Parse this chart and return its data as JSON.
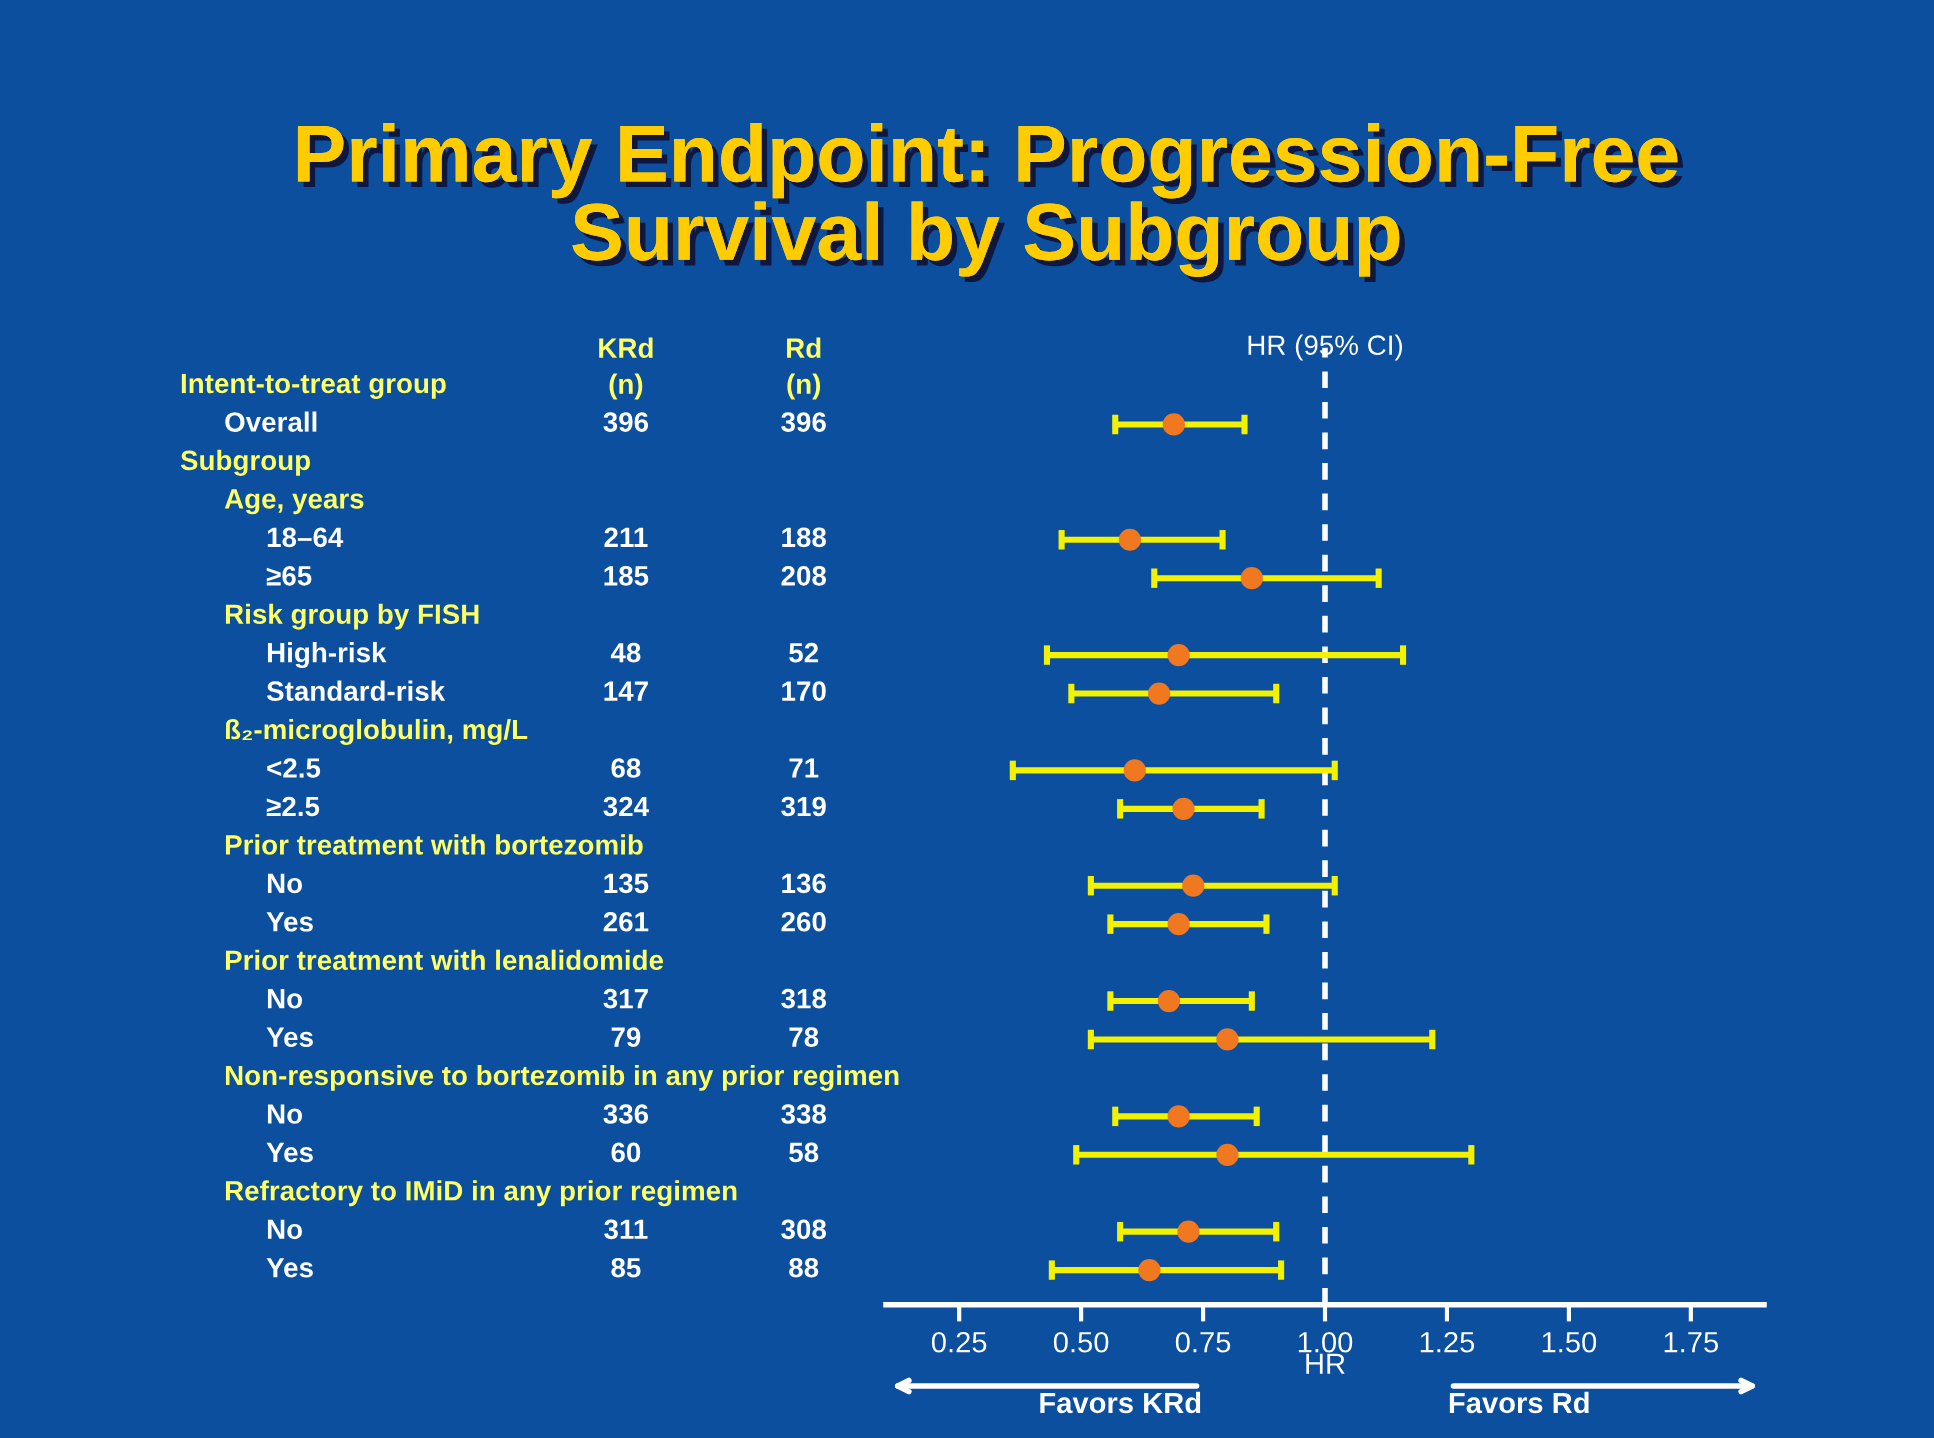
{
  "chart_data": [
    {
      "type": "other",
      "title": "Primary Endpoint: Progression-Free\nSurvival by Subgroup",
      "categories": [
        "Intent-to-treat group",
        "Overall",
        "Subgroup",
        "Age, years",
        "18–64",
        "≥65",
        "Risk group by FISH",
        "High-risk",
        "Standard-risk",
        "ß₂-microglobulin, mg/L",
        "<2.5",
        "≥2.5",
        "Prior treatment with bortezomib",
        "No",
        "Yes",
        "Prior treatment with lenalidomide",
        "No",
        "Yes",
        "Non-responsive to bortezomib in any prior regimen",
        "No",
        "Yes",
        "Refractory to IMiD in any prior regimen",
        "No",
        "Yes"
      ],
      "series": [
        {
          "name": "KRd\n(n)",
          "values": [
            null,
            396,
            null,
            null,
            211,
            185,
            null,
            48,
            147,
            null,
            68,
            324,
            null,
            135,
            261,
            null,
            317,
            79,
            null,
            336,
            60,
            null,
            311,
            85
          ]
        },
        {
          "name": "Rd\n(n)",
          "values": [
            null,
            396,
            null,
            null,
            188,
            208,
            null,
            52,
            170,
            null,
            71,
            319,
            null,
            136,
            260,
            null,
            318,
            78,
            null,
            338,
            58,
            null,
            308,
            88
          ]
        }
      ],
      "data_labels": true
    },
    {
      "type": "scatter",
      "orientation": "horizontal",
      "title": "HR (95% CI)",
      "xlabel": "HR",
      "categories": [
        null,
        null,
        null,
        null,
        null,
        null,
        null,
        null,
        null,
        null,
        null,
        null,
        null,
        null,
        null,
        null,
        null,
        null,
        null,
        null,
        null,
        null,
        null,
        null
      ],
      "tick_labels": "x",
      "color": "#f07820",
      "values": [
        null,
        0.69,
        null,
        null,
        0.6,
        0.85,
        null,
        0.7,
        0.66,
        null,
        0.61,
        0.71,
        null,
        0.73,
        0.7,
        null,
        0.68,
        0.8,
        null,
        0.7,
        0.8,
        null,
        0.72,
        0.64
      ],
      "errors": [
        null,
        [
          0.57,
          0.835
        ],
        null,
        null,
        [
          0.46,
          0.79
        ],
        [
          0.65,
          1.11
        ],
        null,
        [
          0.43,
          1.16
        ],
        [
          0.48,
          0.9
        ],
        null,
        [
          0.36,
          1.02
        ],
        [
          0.58,
          0.87
        ],
        null,
        [
          0.52,
          1.02
        ],
        [
          0.56,
          0.88
        ],
        null,
        [
          0.56,
          0.85
        ],
        [
          0.52,
          1.22
        ],
        null,
        [
          0.57,
          0.86
        ],
        [
          0.49,
          1.3
        ],
        null,
        [
          0.58,
          0.9
        ],
        [
          0.44,
          0.91
        ]
      ],
      "marker": "circle",
      "xlim": [
        0.1,
        1.9
      ],
      "xticks": [
        {
          "value": 0.25,
          "label": "0.25"
        },
        {
          "value": 0.5,
          "label": "0.50"
        },
        {
          "value": 0.75,
          "label": "0.75"
        },
        {
          "value": 1.0,
          "label": "1.00"
        },
        {
          "value": 1.25,
          "label": "1.25"
        },
        {
          "value": 1.5,
          "label": "1.50"
        },
        {
          "value": 1.75,
          "label": "1.75"
        }
      ],
      "ref_lines": [
        {
          "axis": "x",
          "value": 1.0,
          "color": "#ffffff",
          "line_style": "dashed"
        }
      ],
      "annotations": [
        "Favors KRd",
        "Favors Rd"
      ],
      "grid": false
    }
  ]
}
